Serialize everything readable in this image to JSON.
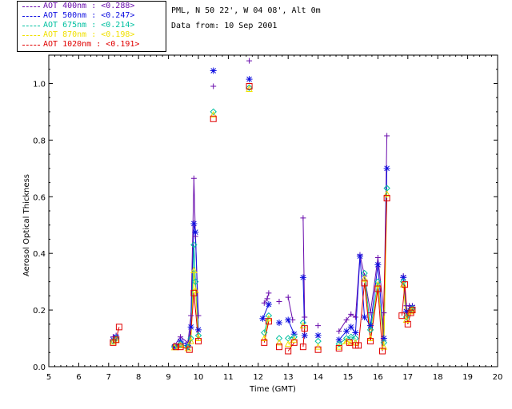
{
  "header": {
    "location": "PML, N 50 22', W 04 08', Alt 0m",
    "date_line": "Data from: 10 Sep 2001"
  },
  "chart_data": {
    "type": "scatter",
    "title": "",
    "xlabel": "Time (GMT)",
    "ylabel": "Aerosol Optical Thickness",
    "xlim": [
      5,
      20
    ],
    "ylim": [
      0,
      1.1
    ],
    "xticks": [
      "5",
      "6",
      "7",
      "8",
      "9",
      "10",
      "11",
      "12",
      "13",
      "14",
      "15",
      "16",
      "17",
      "18",
      "19",
      "20"
    ],
    "yticks": [
      "0.0",
      "0.2",
      "0.4",
      "0.6",
      "0.8",
      "1.0"
    ],
    "grid": false,
    "legend_position": "top-left",
    "series": [
      {
        "name": "AOT  400nm : <0.288>",
        "color": "#6a0dad",
        "marker": "plus",
        "x": [
          7.15,
          7.25,
          9.2,
          9.4,
          9.65,
          9.75,
          9.85,
          9.9,
          10.0,
          10.5,
          11.7,
          12.2,
          12.3,
          12.35,
          12.7,
          13.0,
          13.15,
          13.5,
          13.55,
          14.0,
          14.7,
          14.95,
          15.1,
          15.25,
          15.4,
          15.55,
          15.75,
          16.0,
          16.2,
          16.3,
          16.85,
          16.95,
          17.05,
          17.15
        ],
        "y": [
          0.105,
          0.11,
          0.075,
          0.105,
          0.085,
          0.18,
          0.665,
          0.46,
          0.18,
          0.99,
          1.08,
          0.225,
          0.24,
          0.26,
          0.23,
          0.245,
          0.165,
          0.525,
          0.175,
          0.145,
          0.125,
          0.165,
          0.185,
          0.175,
          0.395,
          0.32,
          0.19,
          0.385,
          0.19,
          0.815,
          0.32,
          0.215,
          0.215,
          0.215
        ]
      },
      {
        "name": "AOT  500nm : <0.247>",
        "color": "#1010e0",
        "marker": "star",
        "x": [
          7.15,
          7.25,
          9.2,
          9.4,
          9.65,
          9.75,
          9.85,
          9.9,
          10.0,
          10.5,
          11.7,
          12.15,
          12.35,
          12.7,
          13.0,
          13.2,
          13.5,
          13.55,
          14.0,
          14.7,
          14.95,
          15.1,
          15.25,
          15.4,
          15.55,
          15.75,
          16.0,
          16.2,
          16.3,
          16.85,
          16.95,
          17.1,
          17.15
        ],
        "y": [
          0.095,
          0.105,
          0.07,
          0.09,
          0.075,
          0.14,
          0.505,
          0.475,
          0.13,
          1.045,
          1.015,
          0.17,
          0.22,
          0.155,
          0.165,
          0.115,
          0.315,
          0.11,
          0.11,
          0.095,
          0.125,
          0.14,
          0.12,
          0.39,
          0.175,
          0.145,
          0.36,
          0.1,
          0.7,
          0.315,
          0.195,
          0.205,
          0.21
        ]
      },
      {
        "name": "AOT  675nm : <0.214>",
        "color": "#00c0a0",
        "marker": "diamond",
        "x": [
          7.15,
          7.25,
          9.2,
          9.4,
          9.65,
          9.75,
          9.85,
          9.9,
          10.0,
          10.5,
          11.7,
          12.2,
          12.35,
          12.7,
          13.0,
          13.2,
          13.5,
          14.0,
          14.7,
          14.95,
          15.1,
          15.25,
          15.55,
          15.75,
          16.0,
          16.2,
          16.3,
          16.85,
          16.95,
          17.1,
          17.15
        ],
        "y": [
          0.09,
          0.1,
          0.07,
          0.08,
          0.07,
          0.1,
          0.43,
          0.3,
          0.11,
          0.9,
          0.985,
          0.12,
          0.18,
          0.1,
          0.1,
          0.105,
          0.155,
          0.09,
          0.08,
          0.1,
          0.105,
          0.1,
          0.33,
          0.13,
          0.3,
          0.085,
          0.63,
          0.3,
          0.175,
          0.2,
          0.205
        ]
      },
      {
        "name": "AOT  870nm : <0.198>",
        "color": "#f0e000",
        "marker": "triangle",
        "x": [
          7.15,
          7.25,
          9.2,
          9.4,
          9.65,
          9.75,
          9.85,
          9.9,
          10.0,
          10.5,
          11.7,
          12.2,
          12.35,
          12.7,
          13.0,
          13.2,
          13.5,
          14.0,
          14.7,
          14.95,
          15.1,
          15.25,
          15.55,
          15.75,
          16.0,
          16.2,
          16.3,
          16.85,
          16.95,
          17.1,
          17.15
        ],
        "y": [
          0.088,
          0.095,
          0.068,
          0.075,
          0.065,
          0.09,
          0.34,
          0.27,
          0.1,
          0.89,
          0.98,
          0.1,
          0.17,
          0.085,
          0.08,
          0.095,
          0.145,
          0.07,
          0.07,
          0.09,
          0.085,
          0.085,
          0.31,
          0.1,
          0.29,
          0.07,
          0.61,
          0.29,
          0.165,
          0.195,
          0.2
        ]
      },
      {
        "name": "AOT 1020nm : <0.191>",
        "color": "#e00000",
        "marker": "square",
        "x": [
          7.15,
          7.25,
          7.35,
          9.25,
          9.4,
          9.7,
          9.85,
          10.0,
          10.5,
          11.7,
          12.2,
          12.35,
          12.7,
          13.0,
          13.2,
          13.5,
          13.55,
          14.0,
          14.7,
          15.05,
          15.25,
          15.35,
          15.55,
          15.75,
          16.0,
          16.15,
          16.3,
          16.8,
          16.9,
          17.0,
          17.1,
          17.15
        ],
        "y": [
          0.085,
          0.095,
          0.14,
          0.07,
          0.07,
          0.06,
          0.26,
          0.09,
          0.875,
          0.99,
          0.085,
          0.16,
          0.07,
          0.055,
          0.085,
          0.07,
          0.135,
          0.06,
          0.065,
          0.085,
          0.075,
          0.075,
          0.295,
          0.09,
          0.275,
          0.055,
          0.595,
          0.18,
          0.29,
          0.15,
          0.19,
          0.2
        ]
      }
    ]
  }
}
